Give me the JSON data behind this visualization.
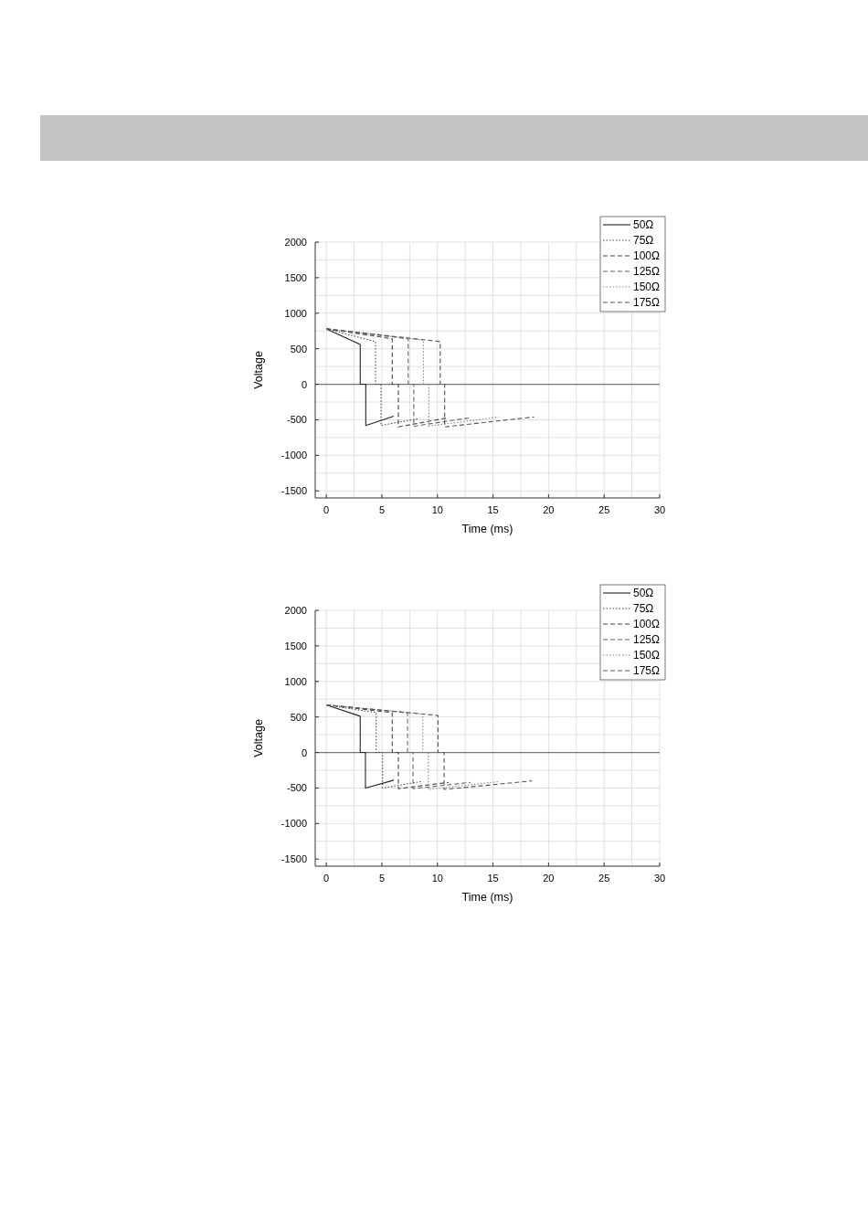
{
  "chart_data": [
    {
      "type": "line",
      "xlabel": "Time (ms)",
      "ylabel": "Voltage",
      "xlim": [
        -1,
        30
      ],
      "ylim": [
        -1600,
        2000
      ],
      "xticks": [
        0,
        5,
        10,
        15,
        20,
        25,
        30
      ],
      "yticks": [
        -1500,
        -1000,
        -500,
        0,
        500,
        1000,
        1500,
        2000
      ],
      "grid": true,
      "legend": "top right",
      "ref_lines": [
        {
          "axis": "y",
          "value": 0,
          "color": "#777777"
        }
      ],
      "series": [
        {
          "name": "50Ω",
          "color": "#222222",
          "line_style": "solid",
          "x": [
            0,
            3.05,
            3.05,
            3.55,
            3.55,
            6.07
          ],
          "values": [
            780,
            560,
            0,
            0,
            -580,
            -450
          ]
        },
        {
          "name": "75Ω",
          "color": "#444444",
          "line_style": "dotted",
          "x": [
            0,
            4.43,
            4.43,
            4.92,
            4.92,
            8.4
          ],
          "values": [
            780,
            600,
            0,
            0,
            -580,
            -480
          ]
        },
        {
          "name": "100Ω",
          "color": "#444444",
          "line_style": "dashed",
          "x": [
            0,
            5.93,
            5.93,
            6.48,
            6.48,
            11
          ],
          "values": [
            780,
            640,
            0,
            0,
            -600,
            -470
          ]
        },
        {
          "name": "125Ω",
          "color": "#666666",
          "line_style": "dashed",
          "x": [
            0,
            7.37,
            7.37,
            7.87,
            7.87,
            13
          ],
          "values": [
            780,
            640,
            0,
            0,
            -590,
            -470
          ]
        },
        {
          "name": "150Ω",
          "color": "#888888",
          "line_style": "dotted",
          "x": [
            0,
            8.74,
            8.74,
            9.23,
            9.23,
            15.5
          ],
          "values": [
            780,
            620,
            0,
            0,
            -590,
            -460
          ]
        },
        {
          "name": "175Ω",
          "color": "#555555",
          "line_style": "dashed",
          "x": [
            0,
            10.25,
            10.25,
            10.65,
            10.65,
            18.7
          ],
          "values": [
            780,
            600,
            0,
            0,
            -600,
            -460
          ]
        }
      ]
    },
    {
      "type": "line",
      "xlabel": "Time (ms)",
      "ylabel": "Voltage",
      "xlim": [
        -1,
        30
      ],
      "ylim": [
        -1600,
        2000
      ],
      "xticks": [
        0,
        5,
        10,
        15,
        20,
        25,
        30
      ],
      "yticks": [
        -1500,
        -1000,
        -500,
        0,
        500,
        1000,
        1500,
        2000
      ],
      "grid": true,
      "legend": "top right",
      "ref_lines": [
        {
          "axis": "y",
          "value": 0,
          "color": "#777777"
        }
      ],
      "series": [
        {
          "name": "50Ω",
          "color": "#222222",
          "line_style": "solid",
          "x": [
            0,
            3.05,
            3.05,
            3.52,
            3.52,
            6.07
          ],
          "values": [
            670,
            510,
            0,
            0,
            -500,
            -390
          ]
        },
        {
          "name": "75Ω",
          "color": "#444444",
          "line_style": "dotted",
          "x": [
            0,
            4.48,
            4.48,
            5.06,
            5.06,
            8.5
          ],
          "values": [
            670,
            560,
            0,
            0,
            -500,
            -410
          ]
        },
        {
          "name": "100Ω",
          "color": "#444444",
          "line_style": "dashed",
          "x": [
            0,
            5.93,
            5.93,
            6.48,
            6.48,
            11
          ],
          "values": [
            670,
            560,
            0,
            0,
            -510,
            -420
          ]
        },
        {
          "name": "125Ω",
          "color": "#666666",
          "line_style": "dashed",
          "x": [
            0,
            7.31,
            7.31,
            7.8,
            7.8,
            13
          ],
          "values": [
            670,
            560,
            0,
            0,
            -510,
            -420
          ]
        },
        {
          "name": "150Ω",
          "color": "#888888",
          "line_style": "dotted",
          "x": [
            0,
            8.68,
            8.68,
            9.18,
            9.18,
            15.5
          ],
          "values": [
            670,
            540,
            0,
            0,
            -520,
            -410
          ]
        },
        {
          "name": "175Ω",
          "color": "#555555",
          "line_style": "dashed",
          "x": [
            0,
            10.05,
            10.05,
            10.6,
            10.6,
            18.5
          ],
          "values": [
            670,
            520,
            0,
            0,
            -520,
            -400
          ]
        }
      ]
    }
  ]
}
